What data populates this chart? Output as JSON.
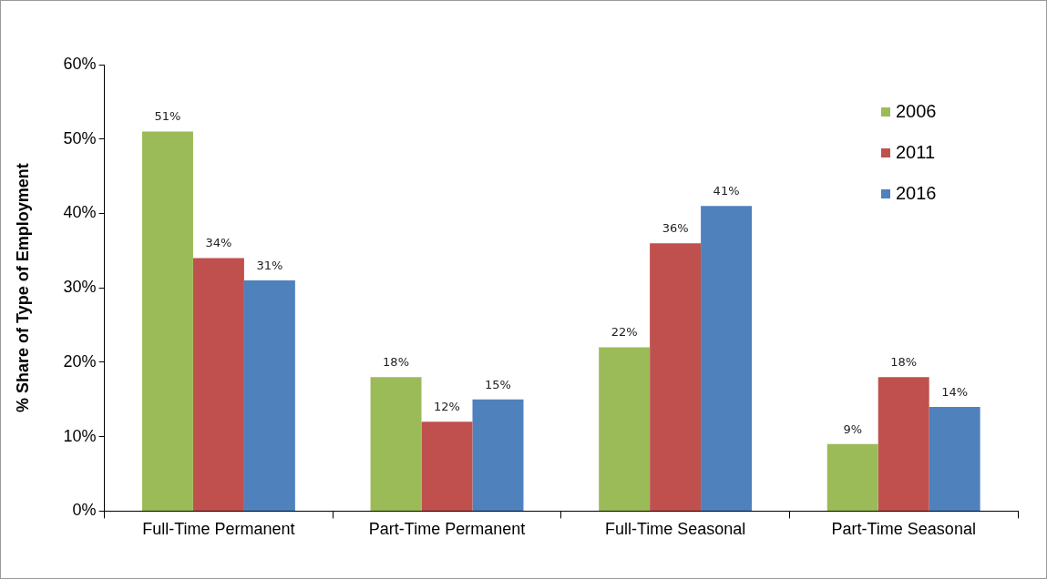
{
  "chart_data": {
    "type": "bar",
    "ylabel": "% Share of Type of Employment",
    "categories": [
      "Full-Time Permanent",
      "Part-Time Permanent",
      "Full-Time Seasonal",
      "Part-Time Seasonal"
    ],
    "series": [
      {
        "name": "2006",
        "color": "#9bbb59",
        "values": [
          51,
          18,
          22,
          9
        ],
        "value_labels": [
          "51%",
          "18%",
          "22%",
          "9%"
        ]
      },
      {
        "name": "2011",
        "color": "#c0504d",
        "values": [
          34,
          12,
          36,
          18
        ],
        "value_labels": [
          "34%",
          "12%",
          "36%",
          "18%"
        ]
      },
      {
        "name": "2016",
        "color": "#4f81bd",
        "values": [
          31,
          15,
          41,
          14
        ],
        "value_labels": [
          "31%",
          "15%",
          "41%",
          "14%"
        ]
      }
    ],
    "ylim": [
      0,
      60
    ],
    "yticks": [
      {
        "value": 0,
        "label": "0%"
      },
      {
        "value": 10,
        "label": "10%"
      },
      {
        "value": 20,
        "label": "20%"
      },
      {
        "value": 30,
        "label": "30%"
      },
      {
        "value": 40,
        "label": "40%"
      },
      {
        "value": 50,
        "label": "50%"
      },
      {
        "value": 60,
        "label": "60%"
      }
    ],
    "grid": false,
    "legend": "top right"
  }
}
